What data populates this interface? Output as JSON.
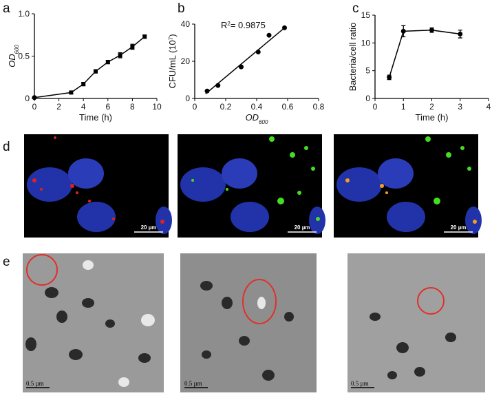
{
  "chart_data": [
    {
      "type": "line",
      "label": "a",
      "x": [
        0,
        3,
        4,
        5,
        6,
        7,
        8,
        9
      ],
      "values": [
        0.01,
        0.07,
        0.17,
        0.32,
        0.43,
        0.51,
        0.61,
        0.73
      ],
      "errors": [
        0.005,
        0.01,
        0.02,
        0.02,
        0.02,
        0.03,
        0.03,
        0.02
      ],
      "color": "#000000",
      "xlim": [
        0,
        10
      ],
      "xticks": [
        0,
        2,
        4,
        6,
        8,
        10
      ],
      "ylim": [
        0,
        1
      ],
      "yticks": [
        0,
        0.5,
        {
          "value": 1,
          "label": "1.0"
        }
      ],
      "xlabel": "Time (h)",
      "ylabel": "OD",
      "ylabel_sub": "600"
    },
    {
      "type": "scatter",
      "label": "b",
      "x": [
        0.08,
        0.15,
        0.3,
        0.41,
        0.48,
        0.58
      ],
      "values": [
        4,
        7,
        17,
        25,
        34,
        38
      ],
      "color": "#000000",
      "fit": {
        "x": [
          0.07,
          0.58
        ],
        "values": [
          2.5,
          38
        ]
      },
      "xlim": [
        0,
        0.8
      ],
      "xticks": [
        0,
        0.2,
        0.4,
        0.6,
        0.8
      ],
      "ylim": [
        0,
        40
      ],
      "yticks": [
        0,
        20,
        40
      ],
      "xlabel": "OD",
      "xlabel_sub": "600",
      "ylabel": "CFU/mL (10",
      "ylabel_sup": "7",
      "ylabel_end": ")",
      "annotation": "R",
      "annotation_sup": "2",
      "annotation_end": "= 0.9875"
    },
    {
      "type": "line",
      "label": "c",
      "x": [
        0.5,
        1,
        2,
        3
      ],
      "values": [
        3.8,
        12.1,
        12.3,
        11.6
      ],
      "errors": [
        0.4,
        1.0,
        0.4,
        0.7
      ],
      "color": "#000000",
      "xlim": [
        0,
        4
      ],
      "xticks": [
        0,
        1,
        2,
        3,
        4
      ],
      "ylim": [
        0,
        15
      ],
      "yticks": [
        0,
        5,
        10,
        15
      ],
      "xlabel": "Time (h)",
      "ylabel": "Bacteria/cell ratio"
    }
  ],
  "panel_d": {
    "label": "d",
    "scale_bars": [
      "20 µm",
      "20 µm",
      "20 µm"
    ]
  },
  "panel_e": {
    "label": "e",
    "scale_bars": [
      "0.5 µm",
      "0.5 µm",
      "0.5 µm"
    ]
  }
}
